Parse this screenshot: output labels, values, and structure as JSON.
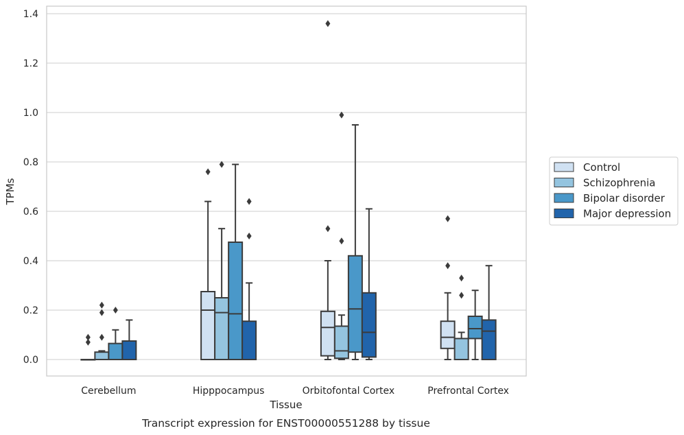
{
  "chart_data": {
    "type": "box",
    "caption": "Transcript expression for ENST00000551288 by tissue",
    "xlabel": "Tissue",
    "ylabel": "TPMs",
    "ylim": [
      -0.065,
      1.43
    ],
    "yticks": [
      0.0,
      0.2,
      0.4,
      0.6,
      0.8,
      1.0,
      1.2,
      1.4
    ],
    "ytick_labels": [
      "0.0",
      "0.2",
      "0.4",
      "0.6",
      "0.8",
      "1.0",
      "1.2",
      "1.4"
    ],
    "grid": "horizontal",
    "legend_position": "right",
    "categories": [
      "Cerebellum",
      "Hipppocampus",
      "Orbitofontal Cortex",
      "Prefrontal Cortex"
    ],
    "series": [
      {
        "name": "Control",
        "color": "#d0e1f2",
        "boxes": [
          {
            "q1": 0.0,
            "median": 0.0,
            "q3": 0.0,
            "whisker_low": 0.0,
            "whisker_high": 0.0,
            "outliers": [
              0.07,
              0.09
            ]
          },
          {
            "q1": 0.0,
            "median": 0.2,
            "q3": 0.275,
            "whisker_low": 0.0,
            "whisker_high": 0.64,
            "outliers": [
              0.76
            ]
          },
          {
            "q1": 0.015,
            "median": 0.13,
            "q3": 0.195,
            "whisker_low": 0.0,
            "whisker_high": 0.4,
            "outliers": [
              0.53,
              1.36
            ]
          },
          {
            "q1": 0.045,
            "median": 0.09,
            "q3": 0.155,
            "whisker_low": 0.0,
            "whisker_high": 0.27,
            "outliers": [
              0.38,
              0.57
            ]
          }
        ]
      },
      {
        "name": "Schizophrenia",
        "color": "#94c4df",
        "boxes": [
          {
            "q1": 0.0,
            "median": 0.0,
            "q3": 0.03,
            "whisker_low": 0.0,
            "whisker_high": 0.035,
            "outliers": [
              0.09,
              0.19,
              0.22
            ]
          },
          {
            "q1": 0.0,
            "median": 0.19,
            "q3": 0.25,
            "whisker_low": 0.0,
            "whisker_high": 0.53,
            "outliers": [
              0.79
            ]
          },
          {
            "q1": 0.005,
            "median": 0.035,
            "q3": 0.135,
            "whisker_low": 0.0,
            "whisker_high": 0.18,
            "outliers": [
              0.48,
              0.99
            ]
          },
          {
            "q1": 0.0,
            "median": 0.0,
            "q3": 0.085,
            "whisker_low": 0.0,
            "whisker_high": 0.11,
            "outliers": [
              0.26,
              0.33
            ]
          }
        ]
      },
      {
        "name": "Bipolar disorder",
        "color": "#4a98c9",
        "boxes": [
          {
            "q1": 0.0,
            "median": 0.0,
            "q3": 0.065,
            "whisker_low": 0.0,
            "whisker_high": 0.12,
            "outliers": [
              0.2
            ]
          },
          {
            "q1": 0.0,
            "median": 0.185,
            "q3": 0.475,
            "whisker_low": 0.0,
            "whisker_high": 0.79,
            "outliers": []
          },
          {
            "q1": 0.03,
            "median": 0.205,
            "q3": 0.42,
            "whisker_low": 0.0,
            "whisker_high": 0.95,
            "outliers": []
          },
          {
            "q1": 0.085,
            "median": 0.125,
            "q3": 0.175,
            "whisker_low": 0.0,
            "whisker_high": 0.28,
            "outliers": []
          }
        ]
      },
      {
        "name": "Major depression",
        "color": "#2164ab",
        "boxes": [
          {
            "q1": 0.0,
            "median": 0.0,
            "q3": 0.075,
            "whisker_low": 0.0,
            "whisker_high": 0.16,
            "outliers": []
          },
          {
            "q1": 0.0,
            "median": 0.0,
            "q3": 0.155,
            "whisker_low": 0.0,
            "whisker_high": 0.31,
            "outliers": [
              0.5,
              0.64
            ]
          },
          {
            "q1": 0.01,
            "median": 0.11,
            "q3": 0.27,
            "whisker_low": 0.0,
            "whisker_high": 0.61,
            "outliers": []
          },
          {
            "q1": 0.0,
            "median": 0.115,
            "q3": 0.16,
            "whisker_low": 0.0,
            "whisker_high": 0.38,
            "outliers": []
          }
        ]
      }
    ]
  },
  "style": {
    "edge_color": "#3b3b3b",
    "grid_color": "#cccccc",
    "frame_color": "#cccccc",
    "text_color": "#262626"
  }
}
